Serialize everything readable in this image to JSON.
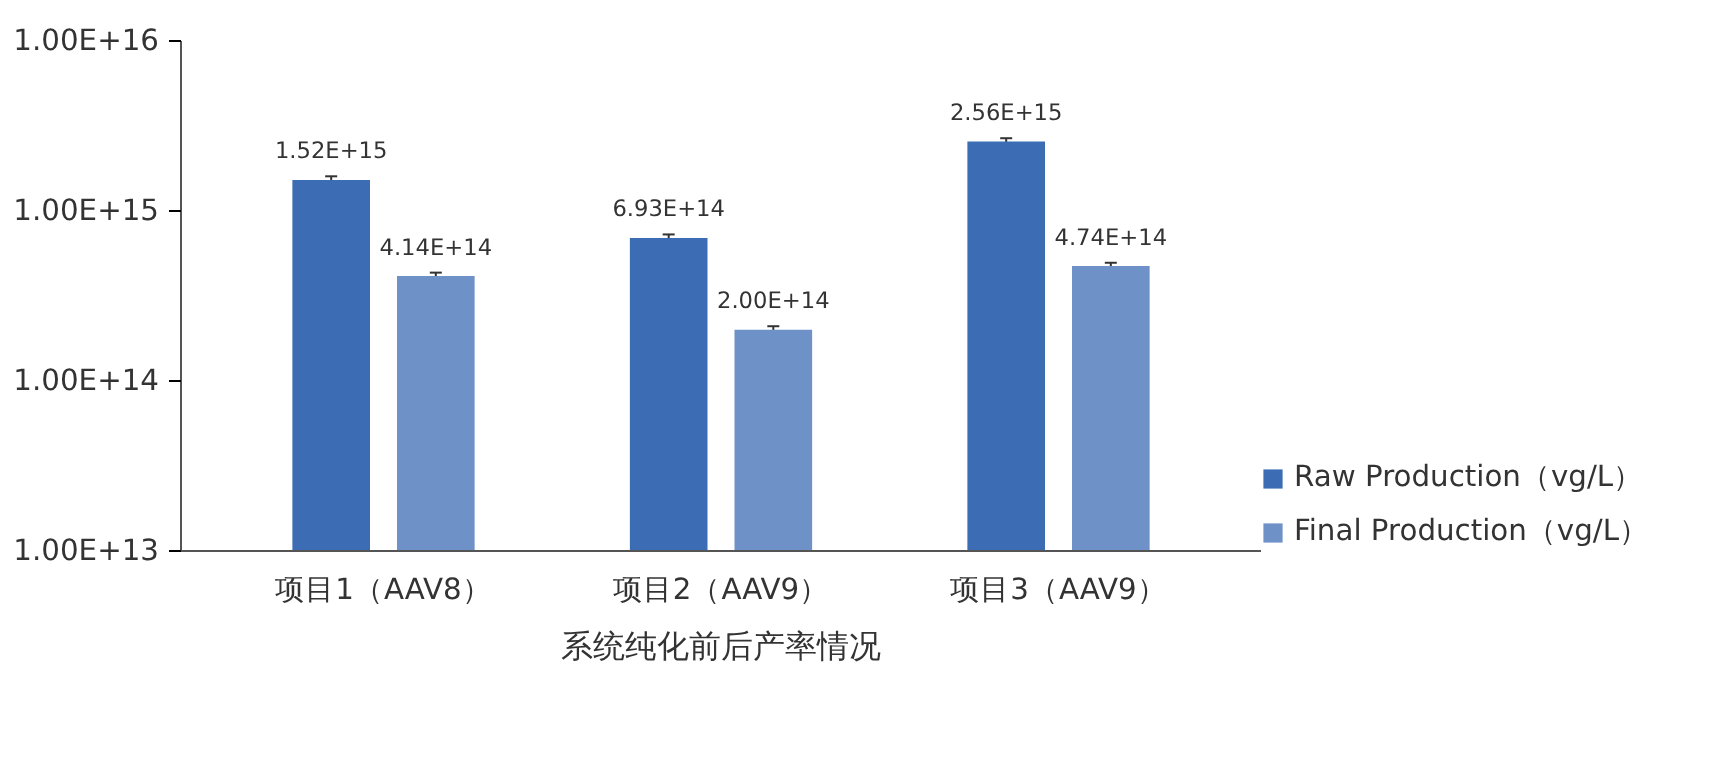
{
  "chart_data": {
    "type": "bar",
    "title": "系统纯化前后产率情况",
    "categories": [
      "项目1（AAV8）",
      "项目2（AAV9）",
      "项目3（AAV9）"
    ],
    "series": [
      {
        "name": "Raw Production（vg/L）",
        "color": "#3c6db4",
        "values": [
          1520000000000000.0,
          693000000000000.0,
          2560000000000000.0
        ],
        "errors": [
          80000000000000.0,
          35000000000000.0,
          120000000000000.0
        ],
        "value_labels": [
          "1.52E+15",
          "6.93E+14",
          "2.56E+15"
        ]
      },
      {
        "name": "Final Production（vg/L）",
        "color": "#6e91c8",
        "values": [
          414000000000000.0,
          200000000000000.0,
          474000000000000.0
        ],
        "errors": [
          20000000000000.0,
          10000000000000.0,
          22000000000000.0
        ],
        "value_labels": [
          "4.14E+14",
          "2.00E+14",
          "4.74E+14"
        ]
      }
    ],
    "log": "y",
    "ylim": [
      10000000000000.0,
      1e+16
    ],
    "yticks": [
      {
        "value": 10000000000000.0,
        "label": "1.00E+13"
      },
      {
        "value": 100000000000000.0,
        "label": "1.00E+14"
      },
      {
        "value": 1000000000000000.0,
        "label": "1.00E+15"
      },
      {
        "value": 1e+16,
        "label": "1.00E+16"
      }
    ],
    "grid": false,
    "legend": "right"
  }
}
